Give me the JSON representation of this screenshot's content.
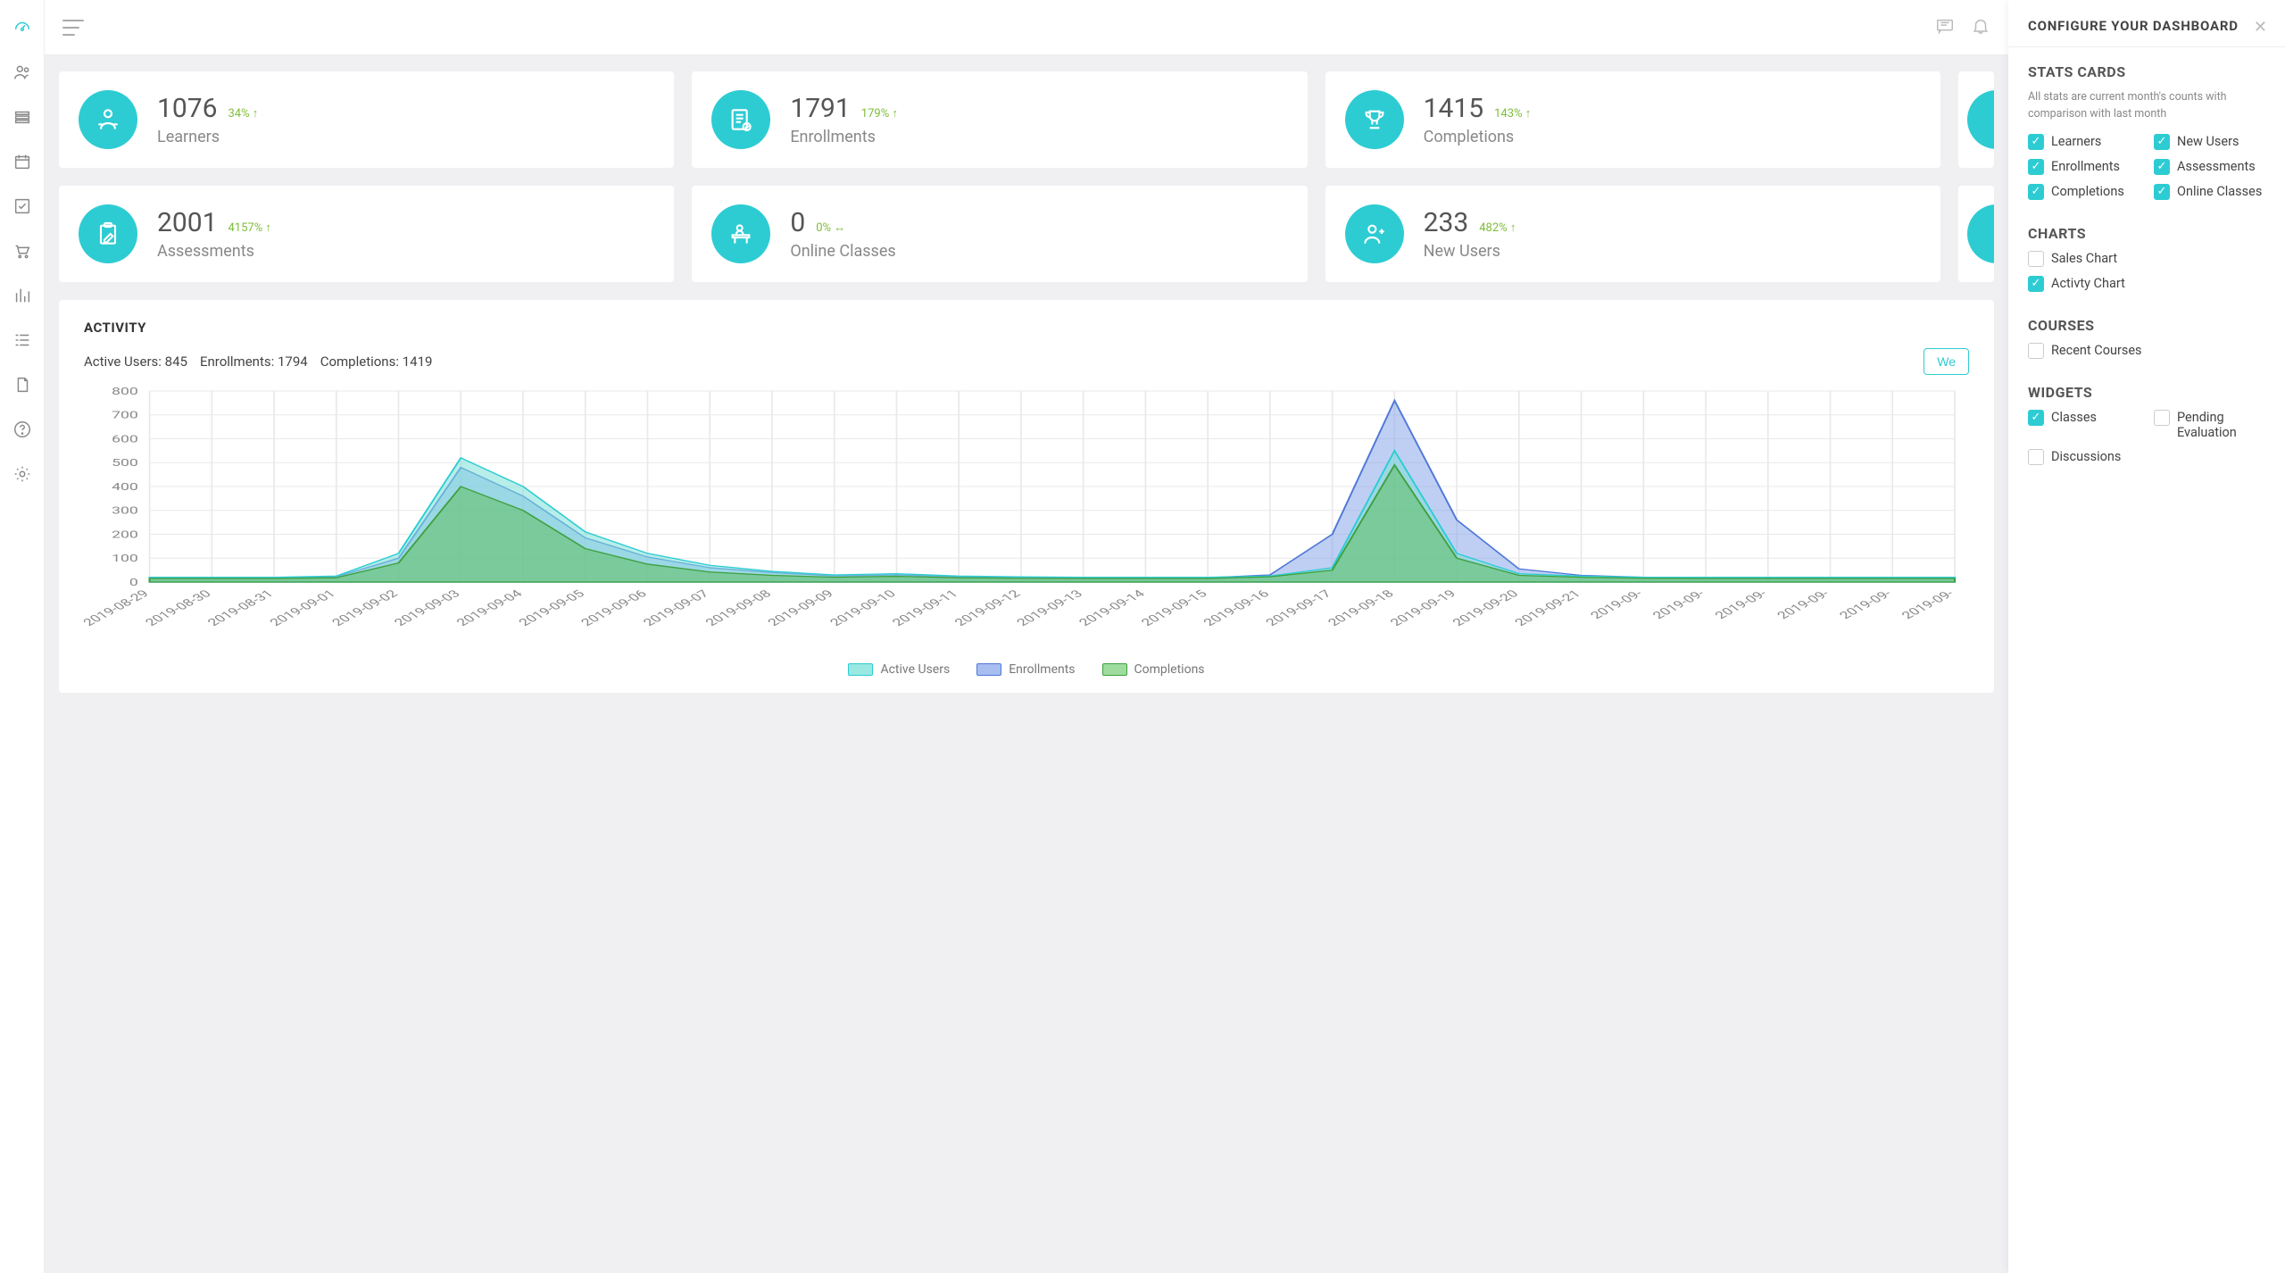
{
  "colors": {
    "accent": "#2dccd3",
    "green": "#7fbd3a",
    "text_muted": "#888",
    "text_dark": "#444",
    "bg_app": "#f0f0f3",
    "card_bg": "#ffffff",
    "grid_line": "#e8e8e8"
  },
  "sidebar": {
    "items": [
      {
        "name": "dashboard",
        "active": true
      },
      {
        "name": "users",
        "active": false
      },
      {
        "name": "courses",
        "active": false
      },
      {
        "name": "calendar",
        "active": false
      },
      {
        "name": "tasks",
        "active": false
      },
      {
        "name": "cart",
        "active": false
      },
      {
        "name": "reports",
        "active": false
      },
      {
        "name": "list",
        "active": false
      },
      {
        "name": "docs",
        "active": false
      },
      {
        "name": "help",
        "active": false
      },
      {
        "name": "settings",
        "active": false
      }
    ]
  },
  "stats": [
    {
      "value": "1076",
      "delta": "34%",
      "dir": "up",
      "label": "Learners",
      "icon": "learner"
    },
    {
      "value": "1791",
      "delta": "179%",
      "dir": "up",
      "label": "Enrollments",
      "icon": "doc-check"
    },
    {
      "value": "1415",
      "delta": "143%",
      "dir": "up",
      "label": "Completions",
      "icon": "trophy"
    },
    {
      "value": "2001",
      "delta": "4157%",
      "dir": "up",
      "label": "Assessments",
      "icon": "clipboard-pencil"
    },
    {
      "value": "0",
      "delta": "0%",
      "dir": "flat",
      "label": "Online Classes",
      "icon": "desk"
    },
    {
      "value": "233",
      "delta": "482%",
      "dir": "up",
      "label": "New Users",
      "icon": "user-plus"
    }
  ],
  "activity": {
    "title": "ACTIVITY",
    "active_users_label": "Active Users:",
    "active_users_value": "845",
    "enrollments_label": "Enrollments:",
    "enrollments_value": "1794",
    "completions_label": "Completions:",
    "completions_value": "1419",
    "week_btn": "We",
    "chart": {
      "type": "area",
      "ylim": [
        0,
        800
      ],
      "ytick_step": 100,
      "yticks": [
        0,
        100,
        200,
        300,
        400,
        500,
        600,
        700,
        800
      ],
      "x_labels": [
        "2019-08-29",
        "2019-08-30",
        "2019-08-31",
        "2019-09-01",
        "2019-09-02",
        "2019-09-03",
        "2019-09-04",
        "2019-09-05",
        "2019-09-06",
        "2019-09-07",
        "2019-09-08",
        "2019-09-09",
        "2019-09-10",
        "2019-09-11",
        "2019-09-12",
        "2019-09-13",
        "2019-09-14",
        "2019-09-15",
        "2019-09-16",
        "2019-09-17",
        "2019-09-18",
        "2019-09-19",
        "2019-09-20",
        "2019-09-21",
        "2019-09-",
        "2019-09-",
        "2019-09-",
        "2019-09-",
        "2019-09-",
        "2019-09-"
      ],
      "series": [
        {
          "name": "Active Users",
          "fill": "#7de0d9",
          "fill_opacity": 0.55,
          "stroke": "#2dccd3",
          "values": [
            20,
            20,
            20,
            25,
            120,
            520,
            400,
            210,
            120,
            70,
            45,
            30,
            35,
            25,
            22,
            20,
            20,
            20,
            25,
            60,
            550,
            120,
            35,
            25,
            20,
            20,
            20,
            20,
            20,
            20
          ]
        },
        {
          "name": "Enrollments",
          "fill": "#7f9fe8",
          "fill_opacity": 0.5,
          "stroke": "#4f78d8",
          "values": [
            18,
            18,
            18,
            22,
            100,
            480,
            360,
            185,
            105,
            60,
            40,
            26,
            30,
            22,
            20,
            18,
            18,
            18,
            30,
            200,
            760,
            260,
            55,
            28,
            20,
            18,
            18,
            18,
            18,
            18
          ]
        },
        {
          "name": "Completions",
          "fill": "#5fbf5f",
          "fill_opacity": 0.55,
          "stroke": "#3ea03e",
          "values": [
            15,
            15,
            15,
            18,
            80,
            400,
            300,
            140,
            75,
            42,
            28,
            20,
            24,
            18,
            16,
            15,
            15,
            15,
            22,
            50,
            490,
            100,
            28,
            20,
            16,
            15,
            15,
            15,
            15,
            15
          ]
        }
      ],
      "legend": [
        {
          "label": "Active Users",
          "fill": "#9ae8e2",
          "border": "#2dccd3"
        },
        {
          "label": "Enrollments",
          "fill": "#a8bdf0",
          "border": "#4f78d8"
        },
        {
          "label": "Completions",
          "fill": "#9edc9e",
          "border": "#3ea03e"
        }
      ],
      "background": "#ffffff",
      "grid_color": "#e8e8e8",
      "axis_font_size": 11,
      "label_rotation_deg": -40
    }
  },
  "config": {
    "title": "CONFIGURE YOUR DASHBOARD",
    "stats_cards": {
      "heading": "STATS CARDS",
      "desc": "All stats are current month's counts with comparison with last month",
      "items": [
        {
          "label": "Learners",
          "checked": true
        },
        {
          "label": "New Users",
          "checked": true
        },
        {
          "label": "Enrollments",
          "checked": true
        },
        {
          "label": "Assessments",
          "checked": true
        },
        {
          "label": "Completions",
          "checked": true
        },
        {
          "label": "Online Classes",
          "checked": true
        }
      ]
    },
    "charts": {
      "heading": "CHARTS",
      "items": [
        {
          "label": "Sales Chart",
          "checked": false
        },
        {
          "label": "Activty Chart",
          "checked": true
        }
      ]
    },
    "courses": {
      "heading": "COURSES",
      "items": [
        {
          "label": "Recent Courses",
          "checked": false
        }
      ]
    },
    "widgets": {
      "heading": "WIDGETS",
      "items": [
        {
          "label": "Classes",
          "checked": true
        },
        {
          "label": "Pending Evaluation",
          "checked": false
        },
        {
          "label": "Discussions",
          "checked": false
        }
      ]
    }
  }
}
